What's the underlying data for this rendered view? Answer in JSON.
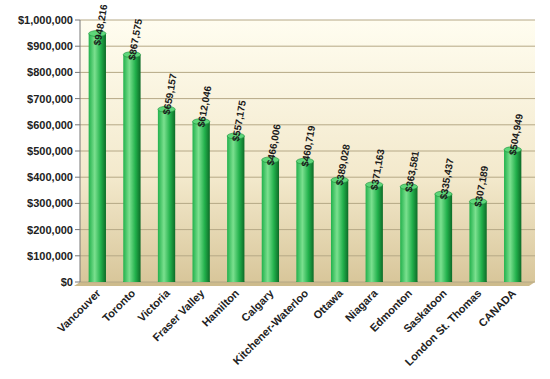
{
  "chart_data": {
    "type": "bar",
    "categories": [
      "Vancouver",
      "Toronto",
      "Victoria",
      "Fraser Valley",
      "Hamilton",
      "Calgary",
      "Kitchener-Waterloo",
      "Ottawa",
      "Niagara",
      "Edmonton",
      "Saskatoon",
      "London St. Thomas",
      "CANADA"
    ],
    "values": [
      948216,
      867575,
      659157,
      612046,
      557175,
      466006,
      460719,
      389028,
      371163,
      363581,
      335437,
      307189,
      504949
    ],
    "value_labels": [
      "$948,216",
      "$867,575",
      "$659,157",
      "$612,046",
      "$557,175",
      "$466,006",
      "$460,719",
      "$389,028",
      "$371,163",
      "$363,581",
      "$335,437",
      "$307,189",
      "$504,949"
    ],
    "color": "#22b14c",
    "ylim": [
      0,
      1000000
    ],
    "yticks": [
      {
        "value": 0,
        "label": "$0"
      },
      {
        "value": 100000,
        "label": "$100,000"
      },
      {
        "value": 200000,
        "label": "$200,000"
      },
      {
        "value": 300000,
        "label": "$300,000"
      },
      {
        "value": 400000,
        "label": "$400,000"
      },
      {
        "value": 500000,
        "label": "$500,000"
      },
      {
        "value": 600000,
        "label": "$600,000"
      },
      {
        "value": 700000,
        "label": "$700,000"
      },
      {
        "value": 800000,
        "label": "$800,000"
      },
      {
        "value": 900000,
        "label": "$900,000"
      },
      {
        "value": 1000000,
        "label": "$1,000,000"
      }
    ],
    "grid": true,
    "data_labels": true
  }
}
